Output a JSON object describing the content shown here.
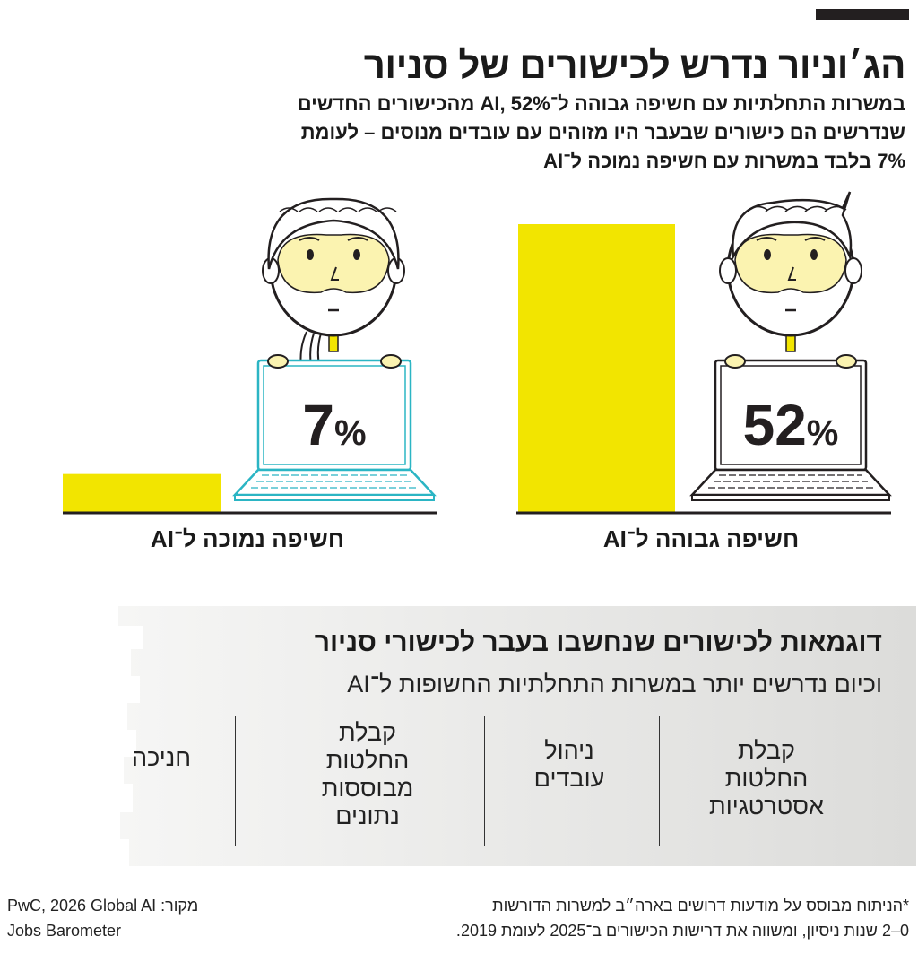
{
  "header": {
    "title": "הג׳וניור נדרש לכישורים של סניור",
    "subtitle_lines": [
      "במשרות התחלתיות עם חשיפה גבוהה ל־AI, 52% מהכישורים החדשים",
      "שנדרשים הם כישורים שבעבר היו מזוהים עם עובדים מנוסים – לעומת",
      "7% בלבד במשרות עם חשיפה נמוכה ל־AI"
    ]
  },
  "chart_data": {
    "type": "bar",
    "categories": [
      "חשיפה גבוהה ל־AI",
      "חשיפה נמוכה ל־AI"
    ],
    "values": [
      52,
      7
    ],
    "unit": "%",
    "value_labels": [
      "52",
      "7"
    ],
    "ylim": [
      0,
      60
    ],
    "bar_color": "#f2e500",
    "laptop_colors": [
      "#231f20",
      "#2bb5c4"
    ],
    "face_color": "#fbf3b0",
    "grid": false
  },
  "examples": {
    "title": "דוגמאות לכישורים שנחשבו בעבר לכישורי סניור",
    "subtitle": "וכיום נדרשים יותר במשרות התחלתיות החשופות ל־AI",
    "items": [
      [
        "קבלת",
        "החלטות",
        "אסטרטגיות"
      ],
      [
        "ניהול",
        "עובדים"
      ],
      [
        "קבלת",
        "החלטות",
        "מבוססות",
        "נתונים"
      ],
      [
        "חניכה"
      ]
    ],
    "panel_color": "#e4e4e2"
  },
  "footer": {
    "footnote_lines": [
      "*הניתוח מבוסס על מודעות דרושים בארה״ב למשרות הדורשות",
      "0–2 שנות ניסיון, ומשווה את דרישות הכישורים ב־2025 לעומת 2019."
    ],
    "source_label": "מקור:",
    "source_lines": [
      "PwC, 2026 Global AI",
      "Jobs Barometer"
    ]
  }
}
